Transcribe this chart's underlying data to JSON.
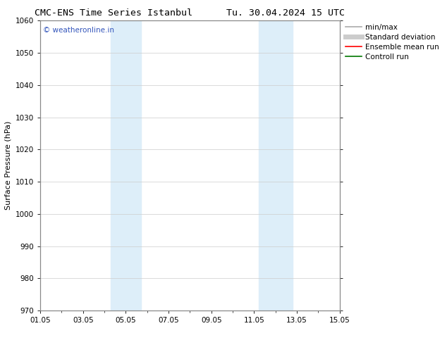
{
  "title": "CMC-ENS Time Series Istanbul      Tu. 30.04.2024 15 UTC",
  "ylabel": "Surface Pressure (hPa)",
  "ylim": [
    970,
    1060
  ],
  "yticks": [
    970,
    980,
    990,
    1000,
    1010,
    1020,
    1030,
    1040,
    1050,
    1060
  ],
  "xlim_start": 0,
  "xlim_end": 14,
  "xtick_labels": [
    "01.05",
    "03.05",
    "05.05",
    "07.05",
    "09.05",
    "11.05",
    "13.05",
    "15.05"
  ],
  "xtick_positions": [
    0,
    2,
    4,
    6,
    8,
    10,
    12,
    14
  ],
  "shaded_bands": [
    {
      "xmin": 3.3,
      "xmax": 4.7,
      "color": "#ddeef9"
    },
    {
      "xmin": 10.2,
      "xmax": 11.8,
      "color": "#ddeef9"
    }
  ],
  "watermark": "© weatheronline.in",
  "watermark_color": "#3355bb",
  "background_color": "#ffffff",
  "grid_color": "#cccccc",
  "legend_items": [
    {
      "label": "min/max",
      "color": "#aaaaaa",
      "lw": 1.2,
      "style": "solid"
    },
    {
      "label": "Standard deviation",
      "color": "#cccccc",
      "lw": 5,
      "style": "solid"
    },
    {
      "label": "Ensemble mean run",
      "color": "#ff0000",
      "lw": 1.2,
      "style": "solid"
    },
    {
      "label": "Controll run",
      "color": "#007700",
      "lw": 1.2,
      "style": "solid"
    }
  ],
  "title_fontsize": 9.5,
  "ylabel_fontsize": 8,
  "tick_fontsize": 7.5,
  "legend_fontsize": 7.5,
  "watermark_fontsize": 7.5
}
